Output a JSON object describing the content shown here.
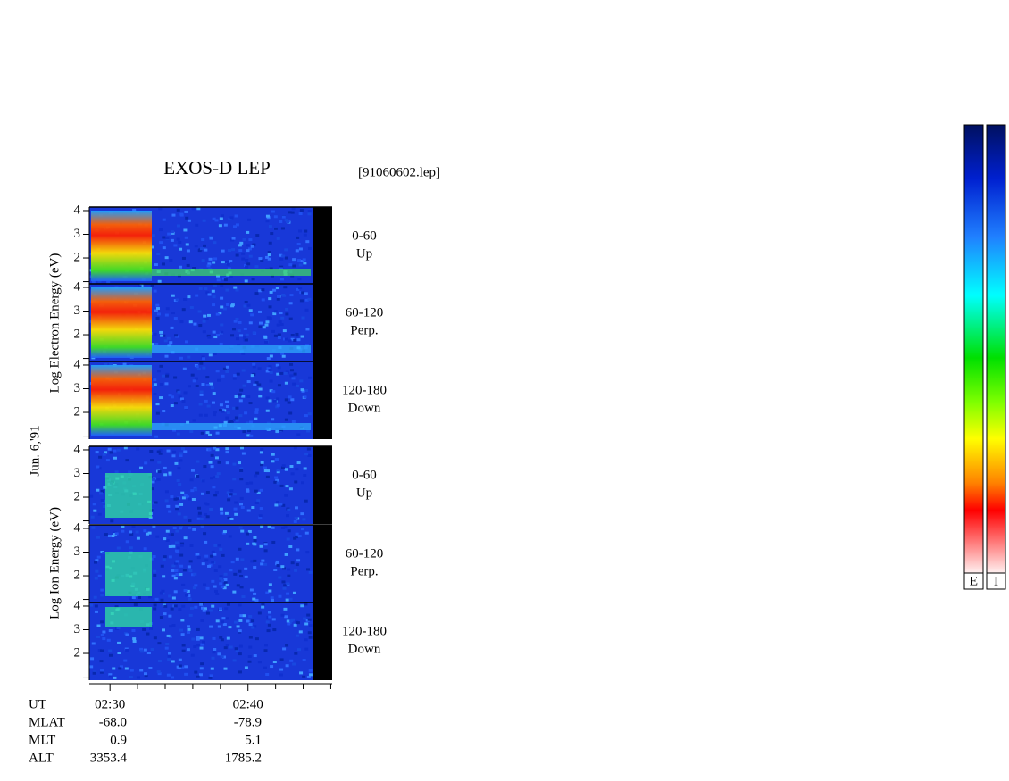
{
  "title": "EXOS-D LEP",
  "file": "[91060602.lep]",
  "date": "Jun. 6,'91",
  "ylim": [
    0.87,
    4.15
  ],
  "yticks": [
    2,
    3,
    4
  ],
  "yminor": [
    1
  ],
  "groups": [
    {
      "label": "Log Electron Energy (eV)",
      "panels": [
        {
          "range": "0-60",
          "direction": "Up"
        },
        {
          "range": "60-120",
          "direction": "Perp."
        },
        {
          "range": "120-180",
          "direction": "Down"
        }
      ]
    },
    {
      "label": "Log Ion Energy (eV)",
      "panels": [
        {
          "range": "0-60",
          "direction": "Up"
        },
        {
          "range": "60-120",
          "direction": "Perp."
        },
        {
          "range": "120-180",
          "direction": "Down"
        }
      ]
    }
  ],
  "xlim": [
    28.5,
    46.1
  ],
  "xticks": [
    {
      "value": 30,
      "label": "02:30"
    },
    {
      "value": 40,
      "label": "02:40"
    }
  ],
  "xminor": [
    32,
    34,
    36,
    38,
    42,
    44,
    46
  ],
  "ephemeris": {
    "row_labels": [
      "UT",
      "MLAT",
      "MLT",
      "ALT"
    ],
    "columns": [
      [
        "-68.0",
        "0.9",
        "3353.4"
      ],
      [
        "-78.9",
        "5.1",
        "1785.2"
      ]
    ]
  },
  "colorbars": [
    "E",
    "I"
  ]
}
